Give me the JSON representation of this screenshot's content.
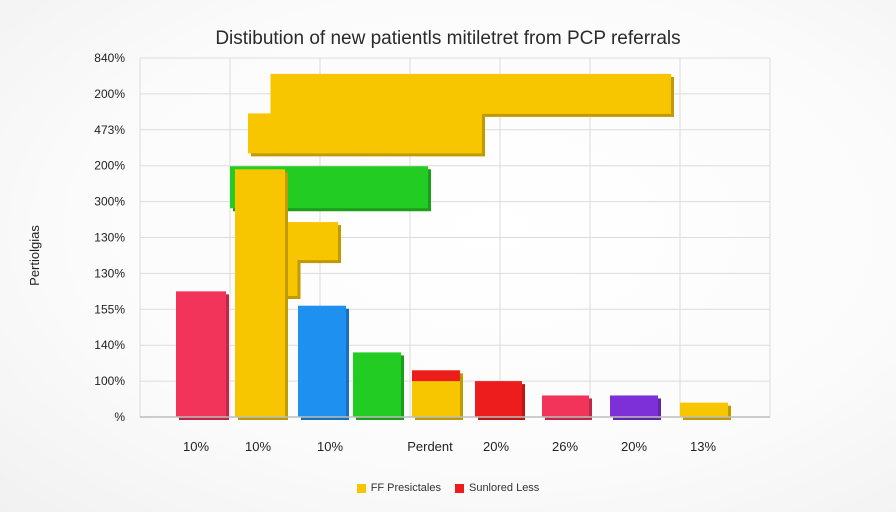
{
  "chart_data": {
    "type": "bar",
    "title": "Distibution of new patientls mitiletret from PCP referrals",
    "ylabel": "Pertiolgias",
    "xlabel": "",
    "y_tick_labels": [
      "%",
      "100%",
      "140%",
      "155%",
      "130%",
      "130%",
      "300%",
      "200%",
      "473%",
      "200%",
      "840%"
    ],
    "x_tick_labels": [
      "10%",
      "10%",
      "10%",
      "Perdent",
      "20%",
      "26%",
      "20%",
      "13%"
    ],
    "vertical_bars": [
      {
        "name": "bar-1",
        "level": 3.5,
        "color": "#f2335a"
      },
      {
        "name": "bar-2",
        "level": 6.9,
        "color": "#f7c600"
      },
      {
        "name": "bar-3",
        "level": 3.1,
        "color": "#1e90f0"
      },
      {
        "name": "bar-4",
        "level": 1.8,
        "color": "#22cc22"
      },
      {
        "name": "bar-5",
        "level": 1.3,
        "color": "#f7c600",
        "cap": "#ee1d1d",
        "cap_level": 0.3
      },
      {
        "name": "bar-6",
        "level": 1.0,
        "color": "#ee1d1d"
      },
      {
        "name": "bar-7",
        "level": 0.6,
        "color": "#f2335a"
      },
      {
        "name": "bar-8",
        "level": 0.6,
        "color": "#7e30d8"
      },
      {
        "name": "bar-9",
        "level": 0.4,
        "color": "#f7c600"
      }
    ],
    "horizontal_bars": [
      {
        "name": "hbar-1",
        "level": 9.0,
        "start": 1.45,
        "end": 5.9,
        "color": "#f7c600"
      },
      {
        "name": "hbar-2",
        "level": 7.9,
        "start": 1.2,
        "end": 3.8,
        "color": "#f7c600"
      },
      {
        "name": "hbar-3",
        "level": 6.4,
        "start": 1.0,
        "end": 3.2,
        "color": "#22cc22"
      },
      {
        "name": "hbar-4",
        "level": 4.9,
        "start": 1.5,
        "end": 2.2,
        "color": "#f7c600"
      },
      {
        "name": "hbar-5",
        "level": 3.9,
        "start": 1.5,
        "end": 1.75,
        "color": "#f7c600"
      }
    ],
    "legend": [
      {
        "label": "FF Presictales",
        "color": "#f7c600"
      },
      {
        "label": "Sunlored Less",
        "color": "#ee1d1d"
      }
    ]
  }
}
